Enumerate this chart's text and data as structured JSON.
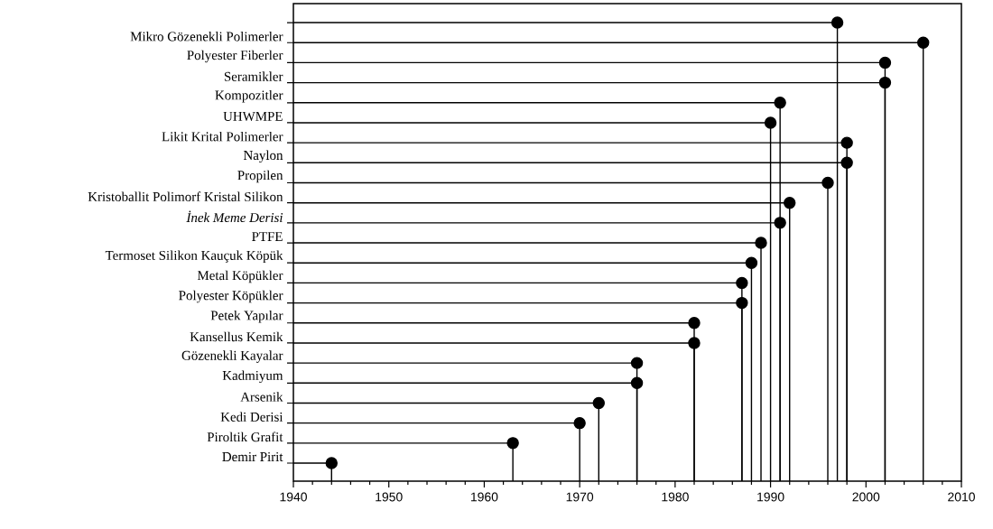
{
  "chart_data": {
    "type": "lollipop",
    "orientation": "horizontal",
    "marker": "circle",
    "color": "#000000",
    "categories": [
      null,
      "Mikro Gözenekli Polimerler",
      "Polyester Fiberler",
      "Seramikler",
      "Kompozitler",
      "UHWMPE",
      "Likit Krital Polimerler",
      "Naylon",
      "Propilen",
      "Kristoballit Polimorf Kristal Silikon",
      "*İnek Meme Derisi*",
      "PTFE",
      "Termoset Silikon Kauçuk Köpük",
      "Metal Köpükler",
      "Polyester Köpükler",
      "Petek Yapılar",
      "Kansellus Kemik",
      "Gözenekli Kayalar",
      "Kadmiyum",
      "Arsenik",
      "Kedi Derisi",
      "Piroltik Grafit",
      "Demir Pirit"
    ],
    "values": [
      1997,
      2006,
      2002,
      2002,
      1991,
      1990,
      1998,
      1998,
      1996,
      1992,
      1991,
      1989,
      1988,
      1987,
      1987,
      1982,
      1982,
      1976,
      1976,
      1972,
      1970,
      1963,
      1944
    ],
    "xlim": [
      1940,
      2010
    ],
    "xticks": [
      1940,
      1950,
      1960,
      1970,
      1980,
      1990,
      2000,
      2010
    ]
  }
}
